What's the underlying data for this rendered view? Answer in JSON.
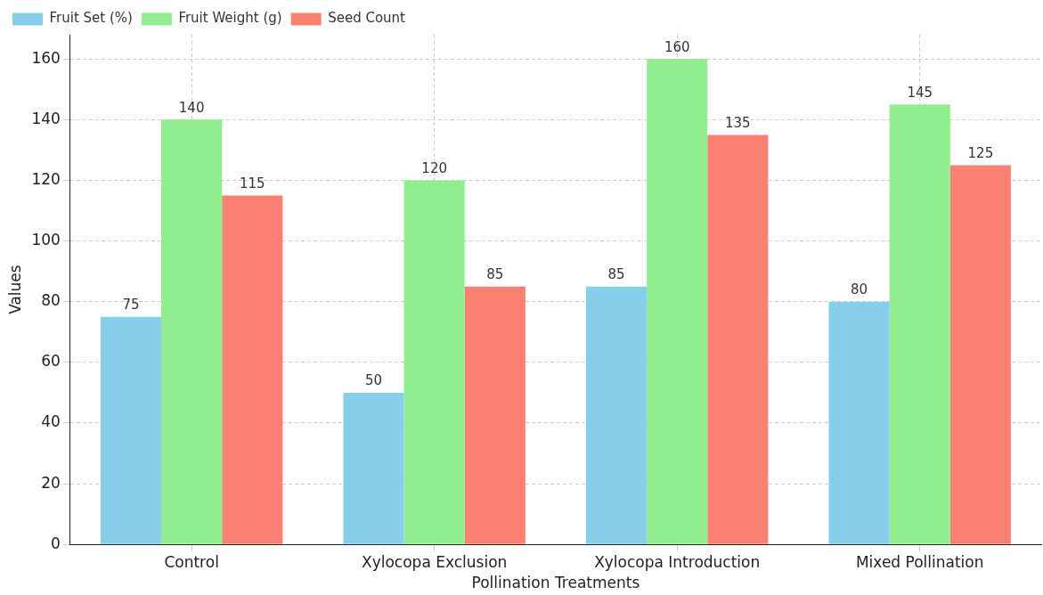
{
  "chart_data": {
    "type": "bar",
    "xlabel": "Pollination Treatments",
    "ylabel": "Values",
    "categories": [
      "Control",
      "Xylocopa Exclusion",
      "Xylocopa Introduction",
      "Mixed Pollination"
    ],
    "series": [
      {
        "name": "Fruit Set (%)",
        "color": "#87ceeb",
        "values": [
          75,
          50,
          85,
          80
        ]
      },
      {
        "name": "Fruit Weight (g)",
        "color": "#90ee90",
        "values": [
          140,
          120,
          160,
          145
        ]
      },
      {
        "name": "Seed Count",
        "color": "#fa8072",
        "values": [
          115,
          85,
          135,
          125
        ]
      }
    ],
    "ylim": [
      0,
      168
    ],
    "yticks": [
      0,
      20,
      40,
      60,
      80,
      100,
      120,
      140,
      160
    ],
    "grid": true,
    "legend": "top left",
    "data_labels": true
  }
}
